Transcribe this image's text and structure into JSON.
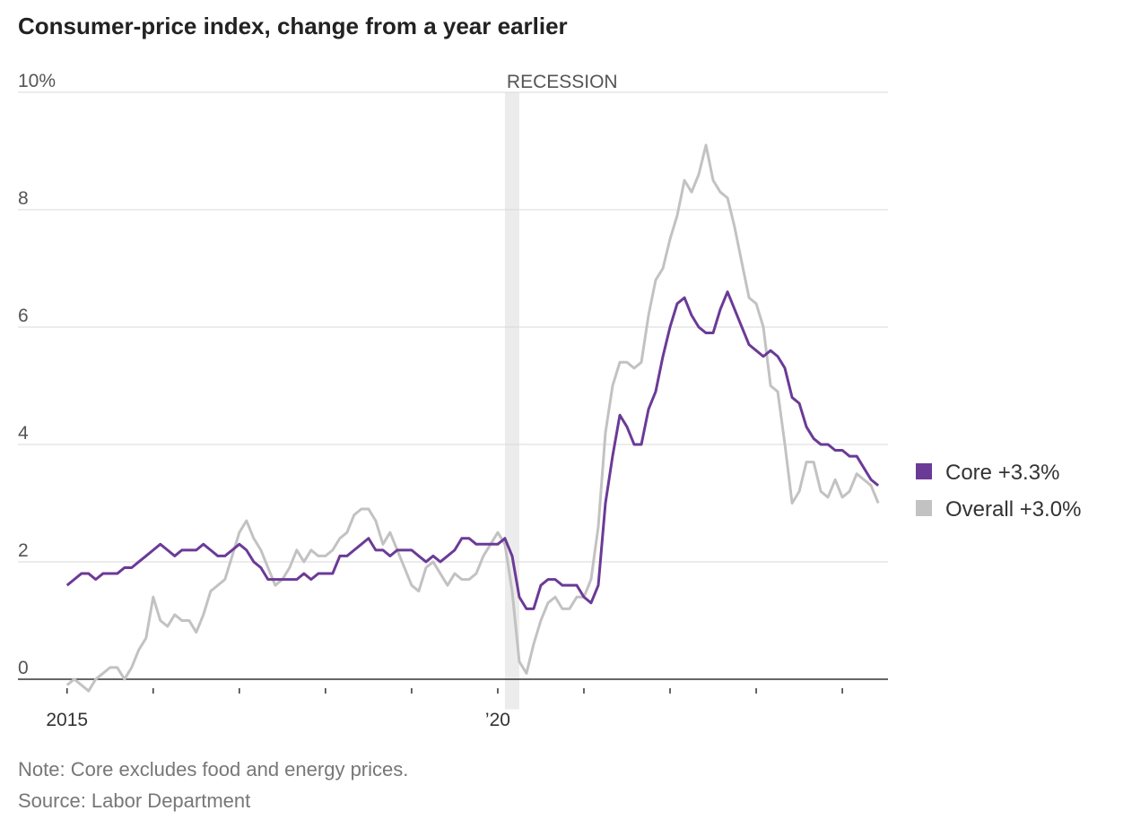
{
  "chart_data": {
    "type": "line",
    "title": "Consumer-price index, change from a year earlier",
    "note": "Note: Core excludes food and energy prices.",
    "source": "Source: Labor Department",
    "recession": {
      "label": "RECESSION",
      "start": 2020.083,
      "end": 2020.25
    },
    "x": [
      2015,
      2015.083,
      2015.167,
      2015.25,
      2015.333,
      2015.417,
      2015.5,
      2015.583,
      2015.667,
      2015.75,
      2015.833,
      2015.917,
      2016,
      2016.083,
      2016.167,
      2016.25,
      2016.333,
      2016.417,
      2016.5,
      2016.583,
      2016.667,
      2016.75,
      2016.833,
      2016.917,
      2017,
      2017.083,
      2017.167,
      2017.25,
      2017.333,
      2017.417,
      2017.5,
      2017.583,
      2017.667,
      2017.75,
      2017.833,
      2017.917,
      2018,
      2018.083,
      2018.167,
      2018.25,
      2018.333,
      2018.417,
      2018.5,
      2018.583,
      2018.667,
      2018.75,
      2018.833,
      2018.917,
      2019,
      2019.083,
      2019.167,
      2019.25,
      2019.333,
      2019.417,
      2019.5,
      2019.583,
      2019.667,
      2019.75,
      2019.833,
      2019.917,
      2020,
      2020.083,
      2020.167,
      2020.25,
      2020.333,
      2020.417,
      2020.5,
      2020.583,
      2020.667,
      2020.75,
      2020.833,
      2020.917,
      2021,
      2021.083,
      2021.167,
      2021.25,
      2021.333,
      2021.417,
      2021.5,
      2021.583,
      2021.667,
      2021.75,
      2021.833,
      2021.917,
      2022,
      2022.083,
      2022.167,
      2022.25,
      2022.333,
      2022.417,
      2022.5,
      2022.583,
      2022.667,
      2022.75,
      2022.833,
      2022.917,
      2023,
      2023.083,
      2023.167,
      2023.25,
      2023.333,
      2023.417,
      2023.5,
      2023.583,
      2023.667,
      2023.75,
      2023.833,
      2023.917,
      2024,
      2024.083,
      2024.167,
      2024.25,
      2024.333,
      2024.417
    ],
    "series": [
      {
        "name": "Overall +3.0%",
        "color": "#c2c2c2",
        "values": [
          -0.1,
          0.0,
          -0.1,
          -0.2,
          0.0,
          0.1,
          0.2,
          0.2,
          0.0,
          0.2,
          0.5,
          0.7,
          1.4,
          1.0,
          0.9,
          1.1,
          1.0,
          1.0,
          0.8,
          1.1,
          1.5,
          1.6,
          1.7,
          2.1,
          2.5,
          2.7,
          2.4,
          2.2,
          1.9,
          1.6,
          1.7,
          1.9,
          2.2,
          2.0,
          2.2,
          2.1,
          2.1,
          2.2,
          2.4,
          2.5,
          2.8,
          2.9,
          2.9,
          2.7,
          2.3,
          2.5,
          2.2,
          1.9,
          1.6,
          1.5,
          1.9,
          2.0,
          1.8,
          1.6,
          1.8,
          1.7,
          1.7,
          1.8,
          2.1,
          2.3,
          2.5,
          2.3,
          1.5,
          0.3,
          0.1,
          0.6,
          1.0,
          1.3,
          1.4,
          1.2,
          1.2,
          1.4,
          1.4,
          1.7,
          2.6,
          4.2,
          5.0,
          5.4,
          5.4,
          5.3,
          5.4,
          6.2,
          6.8,
          7.0,
          7.5,
          7.9,
          8.5,
          8.3,
          8.6,
          9.1,
          8.5,
          8.3,
          8.2,
          7.7,
          7.1,
          6.5,
          6.4,
          6.0,
          5.0,
          4.9,
          4.0,
          3.0,
          3.2,
          3.7,
          3.7,
          3.2,
          3.1,
          3.4,
          3.1,
          3.2,
          3.5,
          3.4,
          3.3,
          3.0
        ]
      },
      {
        "name": "Core +3.3%",
        "color": "#6b3a96",
        "values": [
          1.6,
          1.7,
          1.8,
          1.8,
          1.7,
          1.8,
          1.8,
          1.8,
          1.9,
          1.9,
          2.0,
          2.1,
          2.2,
          2.3,
          2.2,
          2.1,
          2.2,
          2.2,
          2.2,
          2.3,
          2.2,
          2.1,
          2.1,
          2.2,
          2.3,
          2.2,
          2.0,
          1.9,
          1.7,
          1.7,
          1.7,
          1.7,
          1.7,
          1.8,
          1.7,
          1.8,
          1.8,
          1.8,
          2.1,
          2.1,
          2.2,
          2.3,
          2.4,
          2.2,
          2.2,
          2.1,
          2.2,
          2.2,
          2.2,
          2.1,
          2.0,
          2.1,
          2.0,
          2.1,
          2.2,
          2.4,
          2.4,
          2.3,
          2.3,
          2.3,
          2.3,
          2.4,
          2.1,
          1.4,
          1.2,
          1.2,
          1.6,
          1.7,
          1.7,
          1.6,
          1.6,
          1.6,
          1.4,
          1.3,
          1.6,
          3.0,
          3.8,
          4.5,
          4.3,
          4.0,
          4.0,
          4.6,
          4.9,
          5.5,
          6.0,
          6.4,
          6.5,
          6.2,
          6.0,
          5.9,
          5.9,
          6.3,
          6.6,
          6.3,
          6.0,
          5.7,
          5.6,
          5.5,
          5.6,
          5.5,
          5.3,
          4.8,
          4.7,
          4.3,
          4.1,
          4.0,
          4.0,
          3.9,
          3.9,
          3.8,
          3.8,
          3.6,
          3.4,
          3.3
        ]
      }
    ],
    "xlim": [
      2014.43,
      2024.53
    ],
    "xticks": [
      2015,
      {
        "value": 2016,
        "label": null
      },
      {
        "value": 2017,
        "label": null
      },
      {
        "value": 2018,
        "label": null
      },
      {
        "value": 2019,
        "label": null
      },
      {
        "value": 2020,
        "label": "’20"
      },
      {
        "value": 2021,
        "label": null
      },
      {
        "value": 2022,
        "label": null
      },
      {
        "value": 2023,
        "label": null
      },
      {
        "value": 2024,
        "label": null
      }
    ],
    "ylim": [
      -0.3,
      10
    ],
    "yticks": [
      0,
      2,
      4,
      6,
      8,
      {
        "value": 10,
        "label": "10%"
      }
    ],
    "grid": true,
    "legend": "right"
  }
}
